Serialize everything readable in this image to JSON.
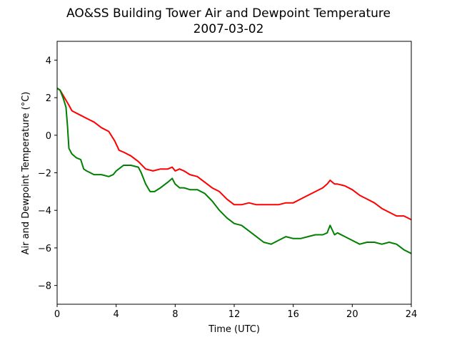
{
  "chart_data": {
    "type": "line",
    "title": "AO&SS Building Tower Air and Dewpoint Temperature",
    "subtitle": "2007-03-02",
    "xlabel": "Time (UTC)",
    "ylabel": "Air and Dewpoint Temperature (°C)",
    "xlim": [
      0,
      24
    ],
    "ylim": [
      -9,
      5
    ],
    "x_ticks": [
      0,
      4,
      8,
      12,
      16,
      20,
      24
    ],
    "y_ticks": [
      4,
      2,
      0,
      -2,
      -4,
      -6,
      -8
    ],
    "x_tick_labels": [
      "0",
      "4",
      "8",
      "12",
      "16",
      "20",
      "24"
    ],
    "y_tick_labels": [
      "4",
      "2",
      "0",
      "−2",
      "−4",
      "−6",
      "−8"
    ],
    "grid": false,
    "series": [
      {
        "color": "#ff0000",
        "x": [
          0,
          0.2,
          0.5,
          0.8,
          1.0,
          1.5,
          2.0,
          2.5,
          3.0,
          3.5,
          3.9,
          4.2,
          4.5,
          5.0,
          5.5,
          6.0,
          6.5,
          7.0,
          7.5,
          7.8,
          8.0,
          8.3,
          8.6,
          9.0,
          9.5,
          10.0,
          10.5,
          11.0,
          11.5,
          12.0,
          12.5,
          13.0,
          13.5,
          14.0,
          14.5,
          15.0,
          15.5,
          16.0,
          16.5,
          17.0,
          17.5,
          18.0,
          18.3,
          18.5,
          18.8,
          19.0,
          19.5,
          20.0,
          20.5,
          21.0,
          21.5,
          22.0,
          22.5,
          23.0,
          23.5,
          24.0
        ],
        "values": [
          2.5,
          2.4,
          2.0,
          1.6,
          1.3,
          1.1,
          0.9,
          0.7,
          0.4,
          0.2,
          -0.3,
          -0.8,
          -0.9,
          -1.1,
          -1.4,
          -1.8,
          -1.9,
          -1.8,
          -1.8,
          -1.7,
          -1.9,
          -1.8,
          -1.9,
          -2.1,
          -2.2,
          -2.5,
          -2.8,
          -3.0,
          -3.4,
          -3.7,
          -3.7,
          -3.6,
          -3.7,
          -3.7,
          -3.7,
          -3.7,
          -3.6,
          -3.6,
          -3.4,
          -3.2,
          -3.0,
          -2.8,
          -2.6,
          -2.4,
          -2.6,
          -2.6,
          -2.7,
          -2.9,
          -3.2,
          -3.4,
          -3.6,
          -3.9,
          -4.1,
          -4.3,
          -4.3,
          -4.5
        ]
      },
      {
        "color": "#008000",
        "x": [
          0,
          0.2,
          0.4,
          0.6,
          0.7,
          0.8,
          1.0,
          1.3,
          1.6,
          1.8,
          2.0,
          2.5,
          3.0,
          3.5,
          3.8,
          4.0,
          4.5,
          5.0,
          5.5,
          5.7,
          6.0,
          6.3,
          6.6,
          7.0,
          7.5,
          7.8,
          8.0,
          8.3,
          8.6,
          9.0,
          9.5,
          10.0,
          10.5,
          11.0,
          11.5,
          12.0,
          12.5,
          13.0,
          13.5,
          14.0,
          14.5,
          15.0,
          15.5,
          16.0,
          16.5,
          17.0,
          17.5,
          18.0,
          18.3,
          18.5,
          18.8,
          19.0,
          19.5,
          20.0,
          20.5,
          21.0,
          21.5,
          22.0,
          22.5,
          23.0,
          23.5,
          24.0
        ],
        "values": [
          2.5,
          2.4,
          2.0,
          1.5,
          0.5,
          -0.7,
          -1.0,
          -1.2,
          -1.3,
          -1.8,
          -1.9,
          -2.1,
          -2.1,
          -2.2,
          -2.1,
          -1.9,
          -1.6,
          -1.6,
          -1.7,
          -2.0,
          -2.6,
          -3.0,
          -3.0,
          -2.8,
          -2.5,
          -2.3,
          -2.6,
          -2.8,
          -2.8,
          -2.9,
          -2.9,
          -3.1,
          -3.5,
          -4.0,
          -4.4,
          -4.7,
          -4.8,
          -5.1,
          -5.4,
          -5.7,
          -5.8,
          -5.6,
          -5.4,
          -5.5,
          -5.5,
          -5.4,
          -5.3,
          -5.3,
          -5.2,
          -4.8,
          -5.3,
          -5.2,
          -5.4,
          -5.6,
          -5.8,
          -5.7,
          -5.7,
          -5.8,
          -5.7,
          -5.8,
          -6.1,
          -6.3
        ]
      }
    ]
  }
}
